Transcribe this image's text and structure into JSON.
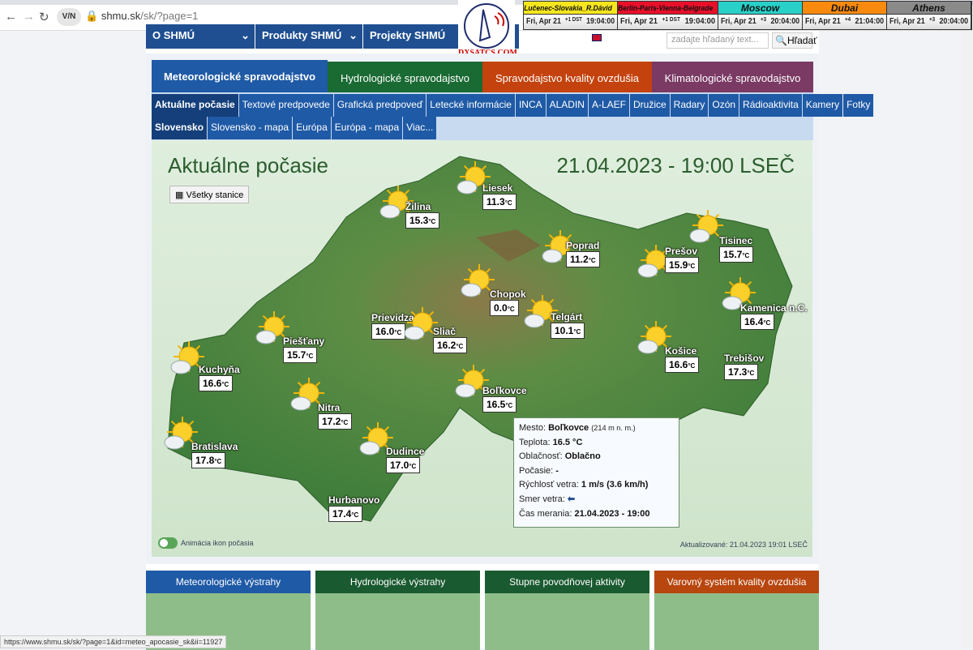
{
  "browser": {
    "url_host": "shmu.sk",
    "url_path": "/sk/?page=1",
    "vpn_label": "V/N",
    "status_url": "https://www.shmu.sk/sk/?page=1&id=meteo_apocasie_sk&ii=11927"
  },
  "topnav": [
    "O SHMÚ",
    "Produkty SHMÚ",
    "Projekty SHMÚ"
  ],
  "logo": {
    "text": "DXSATCS.COM"
  },
  "clocks": [
    {
      "name": "Lučenec-Slovakia_R.Dávid",
      "date": "Fri, Apr 21",
      "offset": "+1 DST",
      "time": "19:04:00",
      "color": "#f5e61e"
    },
    {
      "name": "Berlin-Paris-Vienna-Belgrade",
      "date": "Fri, Apr 21",
      "offset": "+1 DST",
      "time": "19:04:00",
      "color": "#e8102a"
    },
    {
      "name": "Moscow",
      "date": "Fri, Apr 21",
      "offset": "+3",
      "time": "20:04:00",
      "color": "#28d0c8"
    },
    {
      "name": "Dubai",
      "date": "Fri, Apr 21",
      "offset": "+4",
      "time": "21:04:00",
      "color": "#f98a0e"
    },
    {
      "name": "Athens",
      "date": "Fri, Apr 21",
      "offset": "+3",
      "time": "20:04:00",
      "color": "#8a8a8a"
    }
  ],
  "search": {
    "placeholder": "zadajte hľadaný text...",
    "button": "Hľadať"
  },
  "category_tabs": [
    {
      "label": "Meteorologické spravodajstvo",
      "color": "#1f5aa6"
    },
    {
      "label": "Hydrologické spravodajstvo",
      "color": "#1a6a33"
    },
    {
      "label": "Spravodajstvo kvality ovzdušia",
      "color": "#c4420d"
    },
    {
      "label": "Klimatologické spravodajstvo",
      "color": "#7a3a64"
    }
  ],
  "sub_tabs": [
    "Aktuálne počasie",
    "Textové predpovede",
    "Grafická predpoveď",
    "Letecké informácie",
    "INCA",
    "ALADIN",
    "A-LAEF",
    "Družice",
    "Radary",
    "Ozón",
    "Rádioaktivita",
    "Kamery",
    "Fotky"
  ],
  "sub_tabs2": [
    "Slovensko",
    "Slovensko - mapa",
    "Európa",
    "Európa - mapa",
    "Viac..."
  ],
  "map": {
    "title": "Aktuálne počasie",
    "datetime": "21.04.2023 - 19:00 LSEČ",
    "all_stations": "Všetky stanice",
    "animation_label": "Animácia ikon počasia",
    "updated": "Aktualizované: 21.04.2023 19:01 LSEČ",
    "stations": [
      {
        "name": "Žilina",
        "temp": "15.3",
        "icon": "sun-cloud"
      },
      {
        "name": "Liesek",
        "temp": "11.3",
        "icon": "sun-cloud"
      },
      {
        "name": "Poprad",
        "temp": "11.2",
        "icon": "sun-cloud"
      },
      {
        "name": "Tisinec",
        "temp": "15.7",
        "icon": "sun-cloud"
      },
      {
        "name": "Prešov",
        "temp": "15.9",
        "icon": "sun-cloud"
      },
      {
        "name": "Kamenica n.C.",
        "temp": "16.4",
        "icon": "sun-cloud"
      },
      {
        "name": "Chopok",
        "temp": "0.0",
        "icon": "sun-cloud"
      },
      {
        "name": "Telgárt",
        "temp": "10.1",
        "icon": "sun-cloud"
      },
      {
        "name": "Prievidza",
        "temp": "16.0",
        "icon": "none"
      },
      {
        "name": "Sliač",
        "temp": "16.2",
        "icon": "sun-cloud"
      },
      {
        "name": "Košice",
        "temp": "16.6",
        "icon": "sun-cloud"
      },
      {
        "name": "Trebišov",
        "temp": "17.3",
        "icon": "none"
      },
      {
        "name": "Piešťany",
        "temp": "15.7",
        "icon": "sun-cloud"
      },
      {
        "name": "Kuchyňa",
        "temp": "16.6",
        "icon": "sun-cloud"
      },
      {
        "name": "Nitra",
        "temp": "17.2",
        "icon": "sun-cloud"
      },
      {
        "name": "Boľkovce",
        "temp": "16.5",
        "icon": "sun-cloud"
      },
      {
        "name": "Bratislava",
        "temp": "17.8",
        "icon": "sun-cloud"
      },
      {
        "name": "Dudince",
        "temp": "17.0",
        "icon": "sun-cloud"
      },
      {
        "name": "Hurbanovo",
        "temp": "17.4",
        "icon": "none"
      }
    ],
    "unit": "°C"
  },
  "tooltip": {
    "city_label": "Mesto:",
    "city": "Boľkovce",
    "altitude": "(214 m n. m.)",
    "temp_label": "Teplota:",
    "temp": "16.5 °C",
    "cloud_label": "Oblačnosť:",
    "cloud": "Oblačno",
    "weather_label": "Počasie:",
    "weather": "-",
    "wind_label": "Rýchlosť vetra:",
    "wind": "1 m/s (3.6 km/h)",
    "dir_label": "Smer vetra:",
    "dir_icon": "arrow-left-icon",
    "time_label": "Čas merania:",
    "time": "21.04.2023 - 19:00"
  },
  "bottom_panels": [
    {
      "label": "Meteorologické výstrahy",
      "color": "#1f5aa6"
    },
    {
      "label": "Hydrologické výstrahy",
      "color": "#1a5a30"
    },
    {
      "label": "Stupne povodňovej aktivity",
      "color": "#1a5a30"
    },
    {
      "label": "Varovný systém kvality ovzdušia",
      "color": "#b8460f"
    }
  ]
}
